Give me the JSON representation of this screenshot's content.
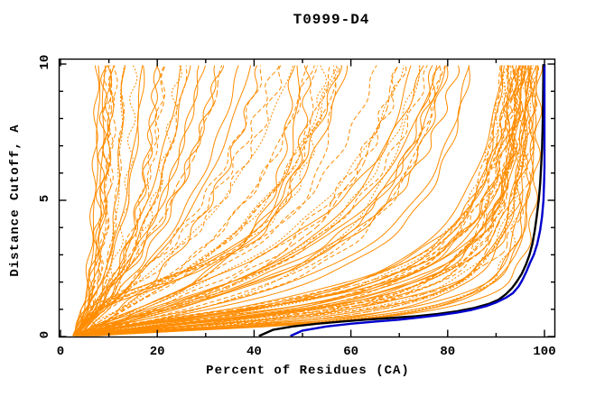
{
  "title": "T0999-D4",
  "chart_data": {
    "type": "line",
    "title": "T0999-D4",
    "xlabel": "Percent of Residues (CA)",
    "ylabel": "Distance Cutoff, A",
    "xlim": [
      0,
      102
    ],
    "ylim": [
      0,
      10.2
    ],
    "x_major_ticks": [
      0,
      20,
      40,
      60,
      80,
      100
    ],
    "x_minor_ticks": [
      10,
      30,
      50,
      70,
      90
    ],
    "y_major_ticks": [
      0,
      5,
      10
    ],
    "y_minor_ticks": [
      1,
      2,
      3,
      4,
      6,
      7,
      8,
      9
    ],
    "grid": false,
    "legend": "none",
    "tics_mirrored": true,
    "colors": {
      "ensemble": "#ff8c00",
      "highlight_blue": "#0000cd",
      "highlight_black": "#000000",
      "axis": "#000000",
      "background": "#ffffff"
    },
    "dash_patterns": [
      "",
      "5 3",
      "2 2",
      "8 3"
    ],
    "series": [
      {
        "name": "highlight-model-blue",
        "color": "#0000cd",
        "points_percent_cutoff": [
          [
            47.5,
            0.02
          ],
          [
            50,
            0.22
          ],
          [
            55,
            0.37
          ],
          [
            60,
            0.47
          ],
          [
            65,
            0.55
          ],
          [
            70,
            0.62
          ],
          [
            74,
            0.7
          ],
          [
            78,
            0.78
          ],
          [
            82,
            0.88
          ],
          [
            85,
            0.98
          ],
          [
            88,
            1.12
          ],
          [
            90,
            1.25
          ],
          [
            92,
            1.42
          ],
          [
            93.5,
            1.6
          ],
          [
            94.7,
            1.85
          ],
          [
            95.5,
            2.1
          ],
          [
            96.3,
            2.4
          ],
          [
            97.0,
            2.7
          ],
          [
            97.8,
            3.0
          ],
          [
            98.5,
            3.4
          ],
          [
            99.1,
            3.9
          ],
          [
            99.5,
            4.4
          ],
          [
            99.8,
            5.0
          ],
          [
            99.9,
            5.6
          ],
          [
            100,
            6.2
          ],
          [
            100,
            10.0
          ]
        ]
      },
      {
        "name": "highlight-model-black",
        "color": "#000000",
        "points_percent_cutoff": [
          [
            41,
            0.02
          ],
          [
            44,
            0.25
          ],
          [
            48,
            0.37
          ],
          [
            53,
            0.47
          ],
          [
            58,
            0.55
          ],
          [
            63,
            0.62
          ],
          [
            68,
            0.68
          ],
          [
            73.5,
            0.75
          ],
          [
            78,
            0.83
          ],
          [
            82,
            0.93
          ],
          [
            85.5,
            1.05
          ],
          [
            88.5,
            1.2
          ],
          [
            90.5,
            1.35
          ],
          [
            92,
            1.55
          ],
          [
            93.3,
            1.78
          ],
          [
            94.3,
            2.02
          ],
          [
            95.3,
            2.3
          ],
          [
            96.2,
            2.65
          ],
          [
            96.9,
            3.0
          ],
          [
            97.5,
            3.4
          ],
          [
            98.0,
            3.9
          ],
          [
            98.4,
            4.4
          ],
          [
            98.8,
            5.0
          ],
          [
            99.1,
            5.6
          ],
          [
            99.3,
            6.2
          ],
          [
            99.5,
            6.9
          ],
          [
            99.6,
            7.6
          ],
          [
            99.7,
            8.5
          ],
          [
            99.8,
            10.0
          ]
        ]
      }
    ],
    "ensemble": {
      "name": "server-model-curves",
      "color": "#ff8c00",
      "count": 112,
      "model": "percent(y) = c + (p - c) * y^k / (y^k + m^k), y = distance cutoff in A",
      "params_c_m_k_p_dash": [
        [
          4,
          0.5,
          1.6,
          99,
          0
        ],
        [
          3,
          0.8,
          1.4,
          98,
          1
        ],
        [
          5,
          1.2,
          1.8,
          97,
          0
        ],
        [
          2.5,
          0.6,
          1.3,
          99.5,
          2
        ],
        [
          4,
          1.0,
          1.5,
          98.5,
          0
        ],
        [
          6,
          1.4,
          1.7,
          96,
          1
        ],
        [
          3,
          0.45,
          1.5,
          97.5,
          0
        ],
        [
          5,
          0.9,
          1.9,
          99,
          3
        ],
        [
          4,
          1.6,
          1.6,
          98,
          0
        ],
        [
          2.5,
          0.7,
          1.2,
          96.5,
          1
        ],
        [
          6,
          1.1,
          1.5,
          99,
          0
        ],
        [
          3,
          1.3,
          1.4,
          97,
          2
        ],
        [
          4,
          0.55,
          1.7,
          98.8,
          0
        ],
        [
          5,
          1.0,
          1.3,
          95.5,
          1
        ],
        [
          2.5,
          0.8,
          1.6,
          99.2,
          0
        ],
        [
          6,
          1.5,
          1.8,
          97.8,
          3
        ],
        [
          3,
          0.65,
          1.4,
          98.3,
          0
        ],
        [
          4,
          1.2,
          1.5,
          96.8,
          1
        ],
        [
          5,
          0.5,
          1.8,
          99.4,
          0
        ],
        [
          3,
          0.95,
          1.6,
          97.3,
          2
        ],
        [
          4,
          1.45,
          1.3,
          98.6,
          0
        ],
        [
          2.5,
          0.75,
          1.5,
          95.8,
          1
        ],
        [
          5,
          1.05,
          1.7,
          99.1,
          0
        ],
        [
          6,
          0.6,
          1.4,
          96.2,
          3
        ],
        [
          3,
          1.35,
          1.6,
          98.1,
          0
        ],
        [
          4,
          0.85,
          1.3,
          97.6,
          1
        ],
        [
          5,
          1.55,
          1.5,
          99.3,
          0
        ],
        [
          2.5,
          0.5,
          1.7,
          96.6,
          2
        ],
        [
          4,
          1.15,
          1.4,
          98.4,
          0
        ],
        [
          3,
          0.7,
          1.6,
          97.1,
          1
        ],
        [
          6,
          1.25,
          1.5,
          99.6,
          0
        ],
        [
          4,
          0.9,
          1.8,
          95.2,
          3
        ],
        [
          5,
          0.55,
          1.3,
          98.9,
          0
        ],
        [
          3,
          1.5,
          1.7,
          96.4,
          1
        ],
        [
          2.5,
          1.0,
          1.5,
          98.2,
          0
        ],
        [
          5,
          0.75,
          1.4,
          99.7,
          2
        ],
        [
          4,
          1.3,
          1.6,
          94.8,
          0
        ],
        [
          6,
          0.95,
          1.5,
          97.9,
          1
        ],
        [
          3,
          0.6,
          1.7,
          98.7,
          0
        ],
        [
          4,
          1.1,
          1.3,
          96.1,
          1
        ],
        [
          5,
          1.4,
          1.8,
          99.8,
          0
        ],
        [
          3,
          0.8,
          1.5,
          94.2,
          2
        ],
        [
          4,
          1.8,
          1.4,
          92,
          0
        ],
        [
          3,
          2.2,
          1.3,
          90,
          1
        ],
        [
          5,
          2.6,
          1.5,
          88,
          0
        ],
        [
          4,
          3.0,
          1.2,
          91,
          2
        ],
        [
          2.5,
          2.0,
          1.4,
          93,
          0
        ],
        [
          5,
          3.4,
          1.3,
          86,
          1
        ],
        [
          3,
          2.4,
          1.5,
          89,
          0
        ],
        [
          4,
          2.8,
          1.2,
          84,
          3
        ],
        [
          6,
          3.2,
          1.4,
          92.5,
          0
        ],
        [
          3,
          1.9,
          1.3,
          87,
          1
        ],
        [
          4,
          3.6,
          1.5,
          90.5,
          0
        ],
        [
          5,
          2.1,
          1.2,
          85,
          2
        ],
        [
          2.5,
          2.5,
          1.4,
          93.5,
          0
        ],
        [
          4,
          3.8,
          1.3,
          83,
          1
        ],
        [
          3,
          2.9,
          1.5,
          91.5,
          0
        ],
        [
          5,
          3.3,
          1.2,
          88.5,
          1
        ],
        [
          4,
          2.3,
          1.4,
          86.5,
          0
        ],
        [
          3,
          3.7,
          1.3,
          89.5,
          2
        ],
        [
          5,
          2.7,
          1.5,
          82,
          0
        ],
        [
          4,
          3.1,
          1.2,
          94,
          1
        ],
        [
          3,
          3.5,
          1.2,
          75,
          0
        ],
        [
          4,
          4.5,
          1.3,
          68,
          1
        ],
        [
          5,
          5.5,
          1.1,
          60,
          0
        ],
        [
          3,
          4.0,
          1.4,
          72,
          2
        ],
        [
          4,
          6.0,
          1.2,
          55,
          0
        ],
        [
          2.5,
          5.0,
          1.3,
          64,
          1
        ],
        [
          5,
          4.2,
          1.1,
          78,
          0
        ],
        [
          4,
          6.5,
          1.4,
          50,
          3
        ],
        [
          3,
          5.8,
          1.2,
          58,
          0
        ],
        [
          5,
          4.8,
          1.3,
          70,
          1
        ],
        [
          4,
          7.0,
          1.1,
          46,
          0
        ],
        [
          2.5,
          5.2,
          1.4,
          66,
          2
        ],
        [
          3,
          6.8,
          1.2,
          52,
          0
        ],
        [
          5,
          4.4,
          1.3,
          74,
          1
        ],
        [
          4,
          7.5,
          1.1,
          43,
          0
        ],
        [
          3,
          5.4,
          1.4,
          62,
          1
        ],
        [
          5,
          6.2,
          1.2,
          48,
          0
        ],
        [
          4,
          4.6,
          1.3,
          76,
          2
        ],
        [
          2.5,
          7.2,
          1.1,
          41,
          0
        ],
        [
          4,
          5.6,
          1.4,
          59,
          1
        ],
        [
          3,
          6.4,
          1.2,
          45,
          0
        ],
        [
          5,
          5.0,
          1.3,
          80,
          1
        ],
        [
          4,
          2.4,
          2.8,
          52,
          0
        ],
        [
          4,
          2.6,
          2.6,
          54,
          1
        ],
        [
          3,
          2.5,
          3.0,
          50,
          0
        ],
        [
          5,
          2.8,
          2.7,
          56,
          2
        ],
        [
          4,
          2.3,
          2.5,
          49,
          0
        ],
        [
          4,
          2.7,
          2.9,
          58,
          1
        ],
        [
          2.5,
          1.5,
          1.0,
          10,
          0
        ],
        [
          3,
          2.0,
          1.1,
          12,
          1
        ],
        [
          2.5,
          2.5,
          0.9,
          9,
          0
        ],
        [
          4,
          1.8,
          1.2,
          14,
          2
        ],
        [
          3,
          3.0,
          1.0,
          11,
          0
        ],
        [
          2.5,
          2.2,
          1.1,
          13,
          1
        ],
        [
          4,
          2.8,
          0.9,
          16,
          0
        ],
        [
          3,
          1.6,
          1.2,
          10.5,
          3
        ],
        [
          2.5,
          3.2,
          1.0,
          12.5,
          0
        ],
        [
          4,
          2.4,
          1.1,
          15,
          1
        ],
        [
          3,
          2.6,
          0.9,
          9.5,
          0
        ],
        [
          2.5,
          1.9,
          1.2,
          17,
          2
        ],
        [
          3,
          3.4,
          1.0,
          13.5,
          0
        ],
        [
          4,
          2.1,
          1.1,
          11.5,
          1
        ],
        [
          3,
          3.0,
          1.2,
          24,
          0
        ],
        [
          4,
          4.0,
          1.1,
          28,
          1
        ],
        [
          2.5,
          3.5,
          1.3,
          21,
          0
        ],
        [
          5,
          4.5,
          1.2,
          32,
          2
        ],
        [
          3,
          3.8,
          1.1,
          26,
          0
        ],
        [
          4,
          5.0,
          1.3,
          35,
          1
        ],
        [
          2.5,
          4.2,
          1.2,
          22,
          0
        ],
        [
          3,
          4.8,
          1.1,
          30,
          1
        ]
      ]
    }
  }
}
